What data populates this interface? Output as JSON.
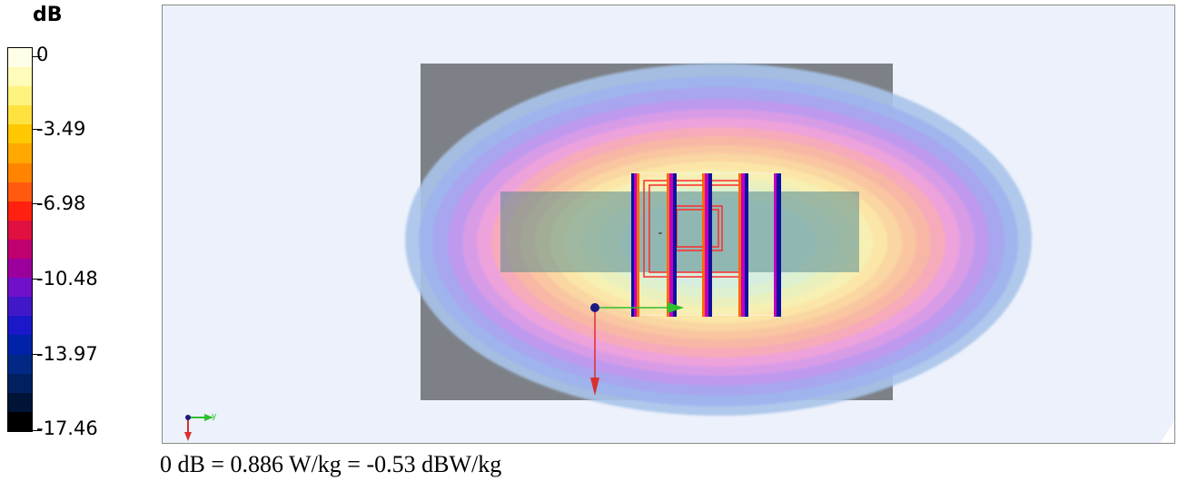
{
  "legend": {
    "unit": "dB",
    "ticks": [
      "0",
      "-3.49",
      "-6.98",
      "-10.48",
      "-13.97",
      "-17.46"
    ],
    "bands": [
      "#ffffe8",
      "#fffbb8",
      "#fff380",
      "#ffe240",
      "#ffc800",
      "#ffa800",
      "#ff8400",
      "#ff5a10",
      "#ff2010",
      "#e01040",
      "#c00070",
      "#9c009c",
      "#7010c8",
      "#4018c8",
      "#1a18c8",
      "#0022a8",
      "#002884",
      "#002060",
      "#001438",
      "#000000"
    ]
  },
  "viewport": {
    "axis_triad_label": "y",
    "colors": {
      "background": "#ecf1fb",
      "phantom_slab": "#7d8187",
      "antenna_plate": "#5a8a8e",
      "outline": "#ff2a2a",
      "axis_green": "#2fbf2f",
      "axis_red": "#d83030"
    }
  },
  "footer": {
    "text": "0 dB = 0.886 W/kg = -0.53 dBW/kg"
  }
}
